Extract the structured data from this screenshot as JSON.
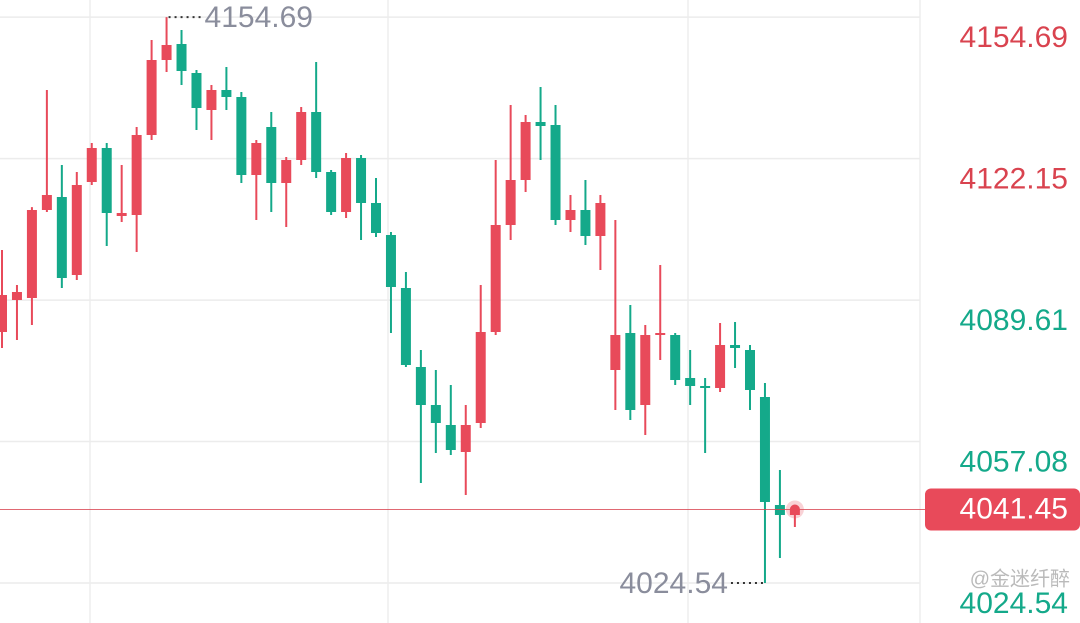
{
  "chart_data": {
    "type": "candlestick",
    "up_color": "#e84a5a",
    "down_color": "#14a98a",
    "open": [
      4082.27,
      4089.63,
      4090.09,
      4110.33,
      4113.32,
      4095.38,
      4116.77,
      4124.59,
      4108.95,
      4109.18,
      4127.58,
      4144.83,
      4148.51,
      4141.84,
      4133.33,
      4137.93,
      4136.32,
      4118.38,
      4129.42,
      4116.54,
      4121.83,
      4132.87,
      4119.07,
      4109.87,
      4122.29,
      4111.94,
      4104.58,
      4092.39,
      4074.22,
      4065.48,
      4060.88,
      4054.67,
      4061.34,
      4082.27,
      4106.88,
      4117.23,
      4130.57,
      4129.88,
      4108.03,
      4110.33,
      4104.35,
      4073.53,
      4082.04,
      4065.48,
      4081.58,
      4081.58,
      4071.69,
      4069.85,
      4069.39,
      4079.28,
      4078.13,
      4067.32,
      4042.48,
      4040.18
    ],
    "high": [
      4101.13,
      4093.08,
      4111.0,
      4137.93,
      4120.68,
      4119.07,
      4125.74,
      4125.74,
      4120.68,
      4129.42,
      4149.43,
      4154.69,
      4151.73,
      4142.53,
      4139.08,
      4143.22,
      4137.47,
      4126.43,
      4132.87,
      4122.52,
      4134.02,
      4144.37,
      4119.53,
      4123.44,
      4122.98,
      4117.69,
      4105.27,
      4096.07,
      4078.13,
      4073.53,
      4070.08,
      4065.48,
      4093.08,
      4121.83,
      4134.48,
      4132.18,
      4138.62,
      4134.48,
      4113.78,
      4117.23,
      4113.78,
      4108.03,
      4088.48,
      4083.88,
      4097.68,
      4082.04,
      4078.13,
      4071.69,
      4084.34,
      4084.57,
      4079.28,
      4070.54,
      4050.53,
      4042.48
    ],
    "low": [
      4078.59,
      4080.43,
      4083.88,
      4109.87,
      4092.39,
      4094.23,
      4116.08,
      4102.05,
      4107.57,
      4100.67,
      4126.43,
      4142.07,
      4139.08,
      4128.73,
      4126.43,
      4133.33,
      4116.54,
      4108.03,
      4109.87,
      4106.42,
      4120.68,
      4117.69,
      4109.18,
      4108.49,
      4103.43,
      4104.12,
      4082.04,
      4074.22,
      4047.54,
      4054.44,
      4053.98,
      4044.78,
      4060.19,
      4081.58,
      4103.43,
      4114.47,
      4121.83,
      4106.88,
      4105.27,
      4102.28,
      4096.53,
      4064.33,
      4062.03,
      4058.58,
      4075.83,
      4070.08,
      4065.48,
      4054.44,
      4068.47,
      4073.99,
      4064.33,
      4024.54,
      4030.29,
      4037.42
    ],
    "close": [
      4090.78,
      4091.47,
      4110.33,
      4113.78,
      4094.69,
      4116.08,
      4124.59,
      4109.64,
      4109.64,
      4127.58,
      4144.83,
      4148.28,
      4142.3,
      4133.79,
      4137.93,
      4136.32,
      4118.38,
      4125.74,
      4116.54,
      4121.83,
      4132.87,
      4119.07,
      4109.87,
      4122.29,
      4111.94,
      4105.04,
      4092.62,
      4074.68,
      4065.48,
      4061.34,
      4055.13,
      4060.88,
      4082.27,
      4106.88,
      4117.23,
      4130.57,
      4129.65,
      4108.03,
      4110.33,
      4104.35,
      4111.94,
      4081.58,
      4064.33,
      4081.58,
      4082.04,
      4071.23,
      4069.85,
      4069.39,
      4079.28,
      4078.59,
      4068.93,
      4043.17,
      4040.18,
      4041.45
    ],
    "ylim": [
      4015.34,
      4158.63
    ],
    "yticks": [
      4154.69,
      4122.15,
      4089.61,
      4057.08,
      4024.54
    ],
    "ytick_colors": [
      "#d9434f",
      "#d9434f",
      "#14a98a",
      "#14a98a",
      "#14a98a"
    ],
    "grid": true,
    "high_marker": 4154.69,
    "low_marker": 4024.54,
    "last_price": 4041.45,
    "watermark": "@金迷纤醉"
  }
}
